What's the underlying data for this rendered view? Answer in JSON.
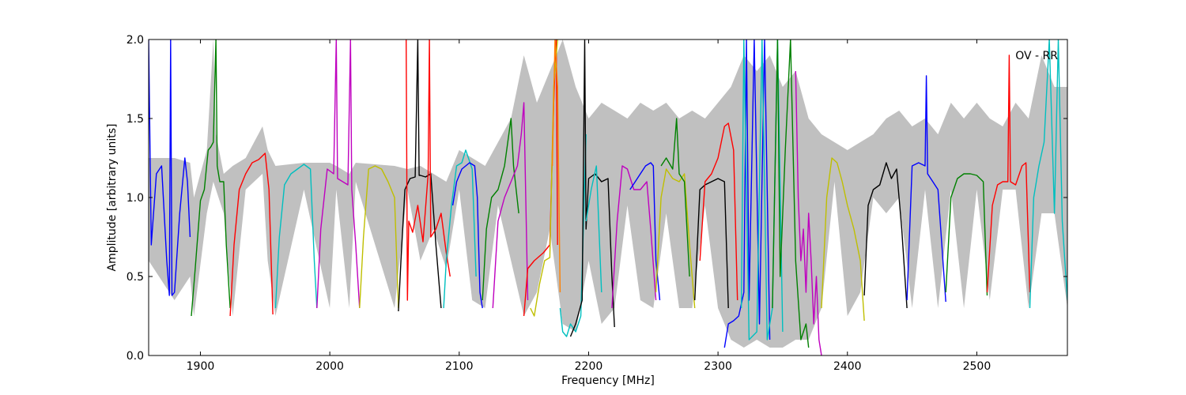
{
  "chart_data": {
    "type": "line",
    "xlabel": "Frequency [MHz]",
    "ylabel": "Amplitude [arbitrary units]",
    "annotation": "OV - RR",
    "xlim": [
      1860,
      2570
    ],
    "ylim": [
      0.0,
      2.0
    ],
    "xticks": [
      1900,
      2000,
      2100,
      2200,
      2300,
      2400,
      2500
    ],
    "yticks": [
      0.0,
      0.5,
      1.0,
      1.5,
      2.0
    ],
    "xtick_labels": [
      "1900",
      "2000",
      "2100",
      "2200",
      "2300",
      "2400",
      "2500"
    ],
    "ytick_labels": [
      "0.0",
      "0.5",
      "1.0",
      "1.5",
      "2.0"
    ],
    "grid": false,
    "background_envelope": {
      "color": "#c0c0c0",
      "x": [
        1860,
        1880,
        1892,
        1895,
        1905,
        1910,
        1912,
        1918,
        1925,
        1935,
        1948,
        1952,
        1958,
        1980,
        2000,
        2005,
        2015,
        2020,
        2050,
        2060,
        2070,
        2080,
        2090,
        2100,
        2110,
        2120,
        2130,
        2140,
        2150,
        2160,
        2170,
        2180,
        2190,
        2200,
        2210,
        2220,
        2230,
        2240,
        2250,
        2260,
        2270,
        2280,
        2290,
        2300,
        2310,
        2320,
        2330,
        2340,
        2350,
        2360,
        2370,
        2380,
        2390,
        2400,
        2410,
        2420,
        2430,
        2440,
        2450,
        2460,
        2470,
        2480,
        2490,
        2500,
        2510,
        2520,
        2530,
        2540,
        2550,
        2560,
        2570
      ],
      "upper": [
        1.25,
        1.25,
        1.22,
        1.0,
        1.3,
        2.0,
        1.4,
        1.15,
        1.2,
        1.25,
        1.45,
        1.3,
        1.2,
        1.22,
        1.22,
        1.2,
        1.15,
        1.22,
        1.2,
        1.18,
        1.2,
        1.15,
        1.1,
        1.3,
        1.25,
        1.2,
        1.35,
        1.5,
        1.9,
        1.6,
        1.8,
        2.0,
        1.7,
        1.5,
        1.6,
        1.55,
        1.5,
        1.6,
        1.55,
        1.6,
        1.5,
        1.55,
        1.5,
        1.6,
        1.7,
        1.9,
        1.8,
        1.9,
        1.7,
        1.8,
        1.5,
        1.4,
        1.35,
        1.3,
        1.35,
        1.4,
        1.5,
        1.55,
        1.45,
        1.5,
        1.4,
        1.6,
        1.5,
        1.6,
        1.5,
        1.45,
        1.6,
        1.5,
        1.9,
        1.7,
        1.7
      ],
      "lower": [
        0.6,
        0.35,
        0.5,
        0.25,
        0.9,
        1.1,
        1.05,
        0.9,
        0.25,
        1.05,
        1.15,
        0.6,
        0.25,
        1.05,
        0.3,
        1.05,
        0.3,
        1.1,
        0.3,
        1.05,
        0.6,
        0.8,
        0.55,
        1.05,
        0.35,
        0.3,
        0.95,
        0.6,
        0.25,
        0.4,
        0.8,
        0.2,
        0.15,
        0.6,
        0.2,
        0.3,
        0.95,
        0.35,
        0.3,
        0.9,
        0.3,
        0.3,
        0.95,
        0.3,
        0.1,
        0.05,
        0.1,
        0.05,
        0.05,
        0.1,
        0.1,
        0.3,
        1.1,
        0.25,
        0.4,
        1.0,
        0.9,
        1.0,
        0.3,
        1.05,
        0.3,
        1.05,
        0.3,
        1.05,
        0.35,
        1.05,
        1.05,
        0.3,
        0.9,
        0.9,
        0.3
      ]
    },
    "series": [
      {
        "color": "#0000ff",
        "x": [
          1860,
          1862,
          1866,
          1870,
          1874,
          1876,
          1877,
          1878,
          1880,
          1884,
          1888,
          1890,
          1892
        ],
        "y": [
          2.0,
          0.7,
          1.15,
          1.2,
          0.6,
          0.38,
          2.0,
          0.38,
          0.4,
          0.9,
          1.25,
          1.1,
          0.75
        ]
      },
      {
        "color": "#008000",
        "x": [
          1893,
          1896,
          1900,
          1903,
          1906,
          1908,
          1910,
          1912,
          1913,
          1915,
          1918,
          1920,
          1923
        ],
        "y": [
          0.25,
          0.55,
          0.98,
          1.05,
          1.3,
          1.32,
          1.35,
          2.0,
          1.2,
          1.1,
          1.1,
          0.7,
          0.3
        ]
      },
      {
        "color": "#ff0000",
        "x": [
          1923,
          1926,
          1930,
          1935,
          1940,
          1945,
          1950,
          1953,
          1956
        ],
        "y": [
          0.25,
          0.7,
          1.05,
          1.15,
          1.22,
          1.24,
          1.28,
          1.05,
          0.26
        ]
      },
      {
        "color": "#00bfbf",
        "x": [
          1958,
          1961,
          1965,
          1970,
          1975,
          1980,
          1985,
          1988,
          1990
        ],
        "y": [
          0.3,
          0.75,
          1.08,
          1.15,
          1.18,
          1.21,
          1.18,
          0.6,
          0.3
        ]
      },
      {
        "color": "#bf00bf",
        "x": [
          1990,
          1993,
          1998,
          2003,
          2005,
          2006,
          2010,
          2014,
          2016,
          2017,
          2020,
          2023
        ],
        "y": [
          0.3,
          0.8,
          1.18,
          1.15,
          2.0,
          1.12,
          1.1,
          1.08,
          2.0,
          1.05,
          0.7,
          0.3
        ]
      },
      {
        "color": "#bfbf00",
        "x": [
          2023,
          2026,
          2030,
          2035,
          2040,
          2045,
          2050,
          2053
        ],
        "y": [
          0.3,
          0.75,
          1.18,
          1.2,
          1.18,
          1.1,
          1.0,
          0.3
        ]
      },
      {
        "color": "#000000",
        "x": [
          2053,
          2055,
          2058,
          2062,
          2066,
          2068,
          2069,
          2070,
          2074,
          2078,
          2082,
          2086
        ],
        "y": [
          0.28,
          0.6,
          1.05,
          1.12,
          1.13,
          2.0,
          1.14,
          1.14,
          1.13,
          1.15,
          0.7,
          0.3
        ]
      },
      {
        "color": "#ff0000",
        "x": [
          2059,
          2060,
          2061,
          2064,
          2068,
          2072,
          2076,
          2077,
          2078,
          2082,
          2086,
          2090,
          2093
        ],
        "y": [
          2.0,
          0.35,
          0.85,
          0.78,
          0.95,
          0.72,
          1.15,
          2.0,
          0.75,
          0.8,
          0.9,
          0.65,
          0.5
        ]
      },
      {
        "color": "#00bfbf",
        "x": [
          2088,
          2090,
          2094,
          2098,
          2102,
          2105,
          2110,
          2113
        ],
        "y": [
          0.3,
          0.6,
          0.95,
          1.2,
          1.22,
          1.3,
          1.18,
          0.5
        ]
      },
      {
        "color": "#0000ff",
        "x": [
          2095,
          2098,
          2102,
          2108,
          2112,
          2114,
          2116,
          2118
        ],
        "y": [
          0.95,
          1.1,
          1.18,
          1.22,
          1.2,
          1.0,
          0.4,
          0.3
        ]
      },
      {
        "color": "#008000",
        "x": [
          2118,
          2121,
          2125,
          2130,
          2135,
          2140,
          2142,
          2146
        ],
        "y": [
          0.35,
          0.8,
          1.0,
          1.05,
          1.2,
          1.5,
          1.2,
          0.9
        ]
      },
      {
        "color": "#bf00bf",
        "x": [
          2126,
          2130,
          2135,
          2140,
          2145,
          2148,
          2150,
          2153
        ],
        "y": [
          0.3,
          0.85,
          1.0,
          1.1,
          1.2,
          1.4,
          1.6,
          0.35
        ]
      },
      {
        "color": "#ff0000",
        "x": [
          2150,
          2153,
          2158,
          2165,
          2170,
          2173,
          2175,
          2176
        ],
        "y": [
          0.25,
          0.55,
          0.6,
          0.65,
          0.7,
          1.6,
          2.0,
          0.7
        ]
      },
      {
        "color": "#bfbf00",
        "x": [
          2155,
          2158,
          2162,
          2166,
          2170,
          2173,
          2176
        ],
        "y": [
          0.3,
          0.25,
          0.45,
          0.6,
          0.62,
          1.7,
          2.0
        ]
      },
      {
        "color": "#ff8000",
        "x": [
          2172,
          2174,
          2176,
          2178
        ],
        "y": [
          1.2,
          2.0,
          1.7,
          0.4
        ]
      },
      {
        "color": "#00bfbf",
        "x": [
          2178,
          2180,
          2183,
          2186,
          2190,
          2194,
          2198
        ],
        "y": [
          0.3,
          0.15,
          0.12,
          0.2,
          0.15,
          0.25,
          1.4
        ]
      },
      {
        "color": "#000000",
        "x": [
          2186,
          2190,
          2195,
          2197,
          2198,
          2200,
          2205,
          2210,
          2215,
          2218,
          2220
        ],
        "y": [
          0.12,
          0.2,
          0.35,
          2.0,
          0.8,
          1.12,
          1.15,
          1.1,
          1.12,
          0.5,
          0.18
        ]
      },
      {
        "color": "#00bfbf",
        "x": [
          2198,
          2202,
          2206,
          2210
        ],
        "y": [
          0.85,
          1.05,
          1.2,
          0.4
        ]
      },
      {
        "color": "#bf00bf",
        "x": [
          2218,
          2222,
          2226,
          2230,
          2235,
          2240,
          2245,
          2248,
          2252
        ],
        "y": [
          0.3,
          0.85,
          1.2,
          1.18,
          1.05,
          1.05,
          1.1,
          0.8,
          0.35
        ]
      },
      {
        "color": "#0000ff",
        "x": [
          2232,
          2236,
          2240,
          2244,
          2248,
          2250,
          2252,
          2255
        ],
        "y": [
          1.05,
          1.1,
          1.15,
          1.2,
          1.22,
          1.2,
          0.6,
          0.35
        ]
      },
      {
        "color": "#bfbf00",
        "x": [
          2252,
          2256,
          2260,
          2265,
          2270,
          2274,
          2278,
          2282
        ],
        "y": [
          0.4,
          1.0,
          1.18,
          1.12,
          1.1,
          1.15,
          0.7,
          0.3
        ]
      },
      {
        "color": "#008000",
        "x": [
          2256,
          2260,
          2265,
          2268,
          2270,
          2274,
          2278
        ],
        "y": [
          1.2,
          1.25,
          1.18,
          1.5,
          1.15,
          1.1,
          0.5
        ]
      },
      {
        "color": "#000000",
        "x": [
          2282,
          2286,
          2290,
          2295,
          2300,
          2305,
          2308
        ],
        "y": [
          0.35,
          1.05,
          1.08,
          1.1,
          1.12,
          1.1,
          0.3
        ]
      },
      {
        "color": "#ff0000",
        "x": [
          2286,
          2290,
          2295,
          2300,
          2305,
          2308,
          2312,
          2315
        ],
        "y": [
          0.6,
          1.1,
          1.15,
          1.25,
          1.45,
          1.47,
          1.3,
          0.35
        ]
      },
      {
        "color": "#0000ff",
        "x": [
          2305,
          2308,
          2312,
          2316,
          2320,
          2322,
          2324,
          2328,
          2332,
          2336,
          2340
        ],
        "y": [
          0.05,
          0.2,
          0.22,
          0.25,
          0.4,
          2.0,
          0.35,
          2.0,
          0.2,
          2.0,
          0.1
        ]
      },
      {
        "color": "#00bfbf",
        "x": [
          2318,
          2320,
          2324,
          2330,
          2334,
          2338,
          2342,
          2346,
          2350
        ],
        "y": [
          0.3,
          2.0,
          0.1,
          0.15,
          2.0,
          0.1,
          0.3,
          2.0,
          0.15
        ]
      },
      {
        "color": "#008000",
        "x": [
          2342,
          2346,
          2348,
          2352,
          2356,
          2360,
          2364,
          2368,
          2370
        ],
        "y": [
          0.3,
          2.0,
          0.5,
          1.3,
          2.0,
          0.6,
          0.1,
          0.2,
          0.05
        ]
      },
      {
        "color": "#bf00bf",
        "x": [
          2360,
          2362,
          2364,
          2366,
          2368,
          2370,
          2372,
          2374,
          2376,
          2378,
          2380
        ],
        "y": [
          1.8,
          1.0,
          0.6,
          0.8,
          0.4,
          0.9,
          0.6,
          0.2,
          0.5,
          0.1,
          0.0
        ]
      },
      {
        "color": "#bfbf00",
        "x": [
          2380,
          2384,
          2388,
          2392,
          2396,
          2400,
          2405,
          2410,
          2413
        ],
        "y": [
          0.3,
          1.0,
          1.25,
          1.22,
          1.1,
          0.95,
          0.8,
          0.6,
          0.22
        ]
      },
      {
        "color": "#000000",
        "x": [
          2413,
          2416,
          2420,
          2425,
          2430,
          2434,
          2438,
          2442,
          2446
        ],
        "y": [
          0.38,
          0.95,
          1.05,
          1.08,
          1.22,
          1.12,
          1.18,
          0.8,
          0.3
        ]
      },
      {
        "color": "#0000ff",
        "x": [
          2446,
          2450,
          2455,
          2460,
          2461,
          2462,
          2466,
          2470,
          2476
        ],
        "y": [
          0.35,
          1.2,
          1.22,
          1.2,
          1.77,
          1.15,
          1.1,
          1.05,
          0.34
        ]
      },
      {
        "color": "#008000",
        "x": [
          2476,
          2480,
          2485,
          2490,
          2495,
          2500,
          2505,
          2508
        ],
        "y": [
          0.4,
          1.0,
          1.12,
          1.15,
          1.15,
          1.14,
          1.1,
          0.38
        ]
      },
      {
        "color": "#ff0000",
        "x": [
          2508,
          2512,
          2516,
          2520,
          2524,
          2525,
          2526,
          2530,
          2535,
          2538,
          2541
        ],
        "y": [
          0.4,
          0.95,
          1.08,
          1.1,
          1.1,
          1.9,
          1.1,
          1.08,
          1.2,
          1.22,
          0.4
        ]
      },
      {
        "color": "#00bfbf",
        "x": [
          2541,
          2544,
          2548,
          2552,
          2556,
          2560,
          2563,
          2566,
          2570
        ],
        "y": [
          0.3,
          1.0,
          1.2,
          1.35,
          2.0,
          0.9,
          2.0,
          0.85,
          0.35
        ]
      }
    ]
  }
}
